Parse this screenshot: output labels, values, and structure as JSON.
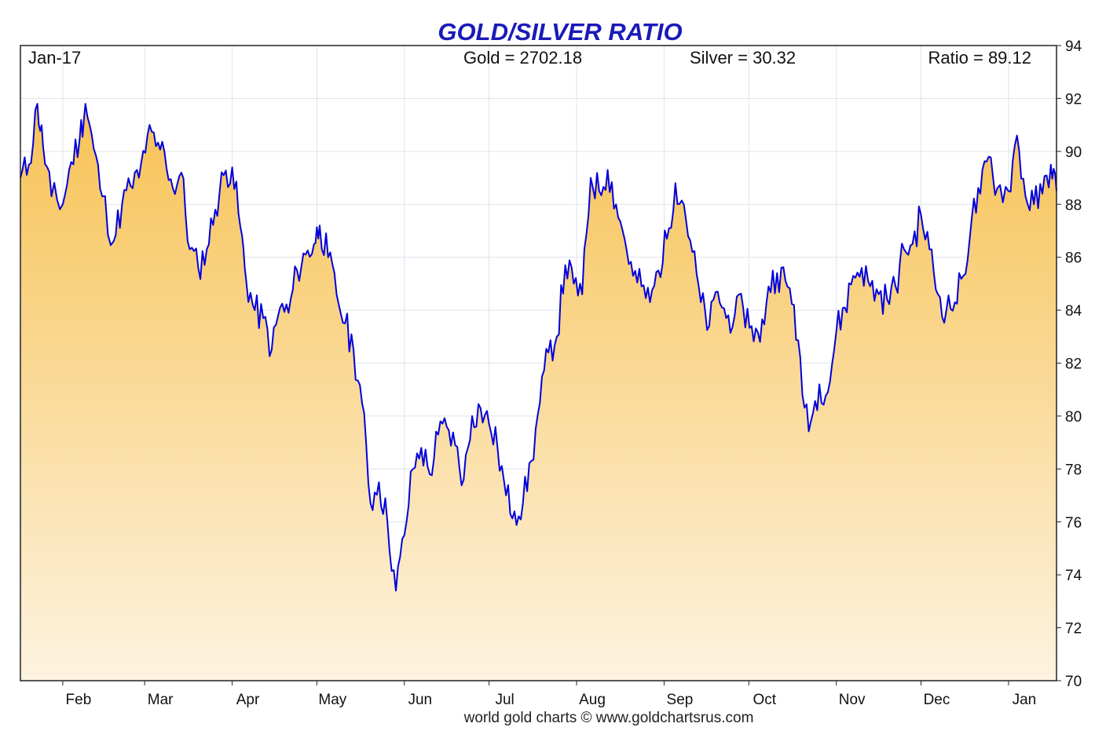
{
  "header": {
    "date": "Jan-17",
    "gold": "Gold = 2702.18",
    "silver": "Silver = 30.32",
    "ratio": "Ratio = 89.12"
  },
  "credit": "world gold charts © www.goldchartsrus.com",
  "colors": {
    "line": "#0000dd",
    "fill_top": "#f7c254",
    "fill_bottom": "#fdf3e0",
    "title": "#1a1ab8",
    "grid": "#dde3ec"
  },
  "chart_data": {
    "type": "area",
    "title": "GOLD/SILVER RATIO",
    "xlabel": "",
    "ylabel": "",
    "ylim": [
      70,
      94
    ],
    "y_ticks": [
      70,
      72,
      74,
      76,
      78,
      80,
      82,
      84,
      86,
      88,
      90,
      92,
      94
    ],
    "y_axis_side": "right",
    "x_tick_labels": [
      "Feb",
      "Mar",
      "Apr",
      "May",
      "Jun",
      "Jul",
      "Aug",
      "Sep",
      "Oct",
      "Nov",
      "Dec",
      "Jan"
    ],
    "grid": true,
    "series": [
      {
        "name": "Ratio",
        "x": [
          "2024-01-17",
          "2024-01-20",
          "2024-01-23",
          "2024-01-25",
          "2024-01-28",
          "2024-02-01",
          "2024-02-04",
          "2024-02-07",
          "2024-02-09",
          "2024-02-12",
          "2024-02-15",
          "2024-02-19",
          "2024-02-22",
          "2024-02-25",
          "2024-02-28",
          "2024-03-02",
          "2024-03-05",
          "2024-03-08",
          "2024-03-11",
          "2024-03-14",
          "2024-03-17",
          "2024-03-20",
          "2024-03-23",
          "2024-03-26",
          "2024-03-29",
          "2024-04-01",
          "2024-04-04",
          "2024-04-06",
          "2024-04-09",
          "2024-04-12",
          "2024-04-15",
          "2024-04-18",
          "2024-04-21",
          "2024-04-24",
          "2024-04-27",
          "2024-04-30",
          "2024-05-02",
          "2024-05-05",
          "2024-05-08",
          "2024-05-11",
          "2024-05-14",
          "2024-05-17",
          "2024-05-20",
          "2024-05-23",
          "2024-05-26",
          "2024-05-29",
          "2024-06-01",
          "2024-06-04",
          "2024-06-07",
          "2024-06-10",
          "2024-06-13",
          "2024-06-16",
          "2024-06-19",
          "2024-06-22",
          "2024-06-25",
          "2024-06-28",
          "2024-07-01",
          "2024-07-04",
          "2024-07-07",
          "2024-07-10",
          "2024-07-13",
          "2024-07-16",
          "2024-07-19",
          "2024-07-22",
          "2024-07-25",
          "2024-07-28",
          "2024-07-31",
          "2024-08-03",
          "2024-08-06",
          "2024-08-09",
          "2024-08-12",
          "2024-08-15",
          "2024-08-18",
          "2024-08-21",
          "2024-08-24",
          "2024-08-27",
          "2024-08-30",
          "2024-09-02",
          "2024-09-05",
          "2024-09-08",
          "2024-09-11",
          "2024-09-14",
          "2024-09-17",
          "2024-09-20",
          "2024-09-23",
          "2024-09-26",
          "2024-09-29",
          "2024-10-02",
          "2024-10-05",
          "2024-10-08",
          "2024-10-11",
          "2024-10-14",
          "2024-10-17",
          "2024-10-20",
          "2024-10-23",
          "2024-10-26",
          "2024-10-29",
          "2024-11-01",
          "2024-11-04",
          "2024-11-07",
          "2024-11-10",
          "2024-11-13",
          "2024-11-16",
          "2024-11-19",
          "2024-11-22",
          "2024-11-25",
          "2024-11-28",
          "2024-12-01",
          "2024-12-04",
          "2024-12-07",
          "2024-12-10",
          "2024-12-13",
          "2024-12-16",
          "2024-12-19",
          "2024-12-22",
          "2024-12-25",
          "2024-12-28",
          "2025-01-01",
          "2025-01-04",
          "2025-01-07",
          "2025-01-10",
          "2025-01-13",
          "2025-01-16",
          "2025-01-18"
        ],
        "values": [
          89.0,
          89.5,
          91.8,
          90.2,
          88.3,
          88.0,
          89.6,
          90.5,
          91.8,
          90.1,
          88.3,
          86.6,
          88.0,
          88.7,
          89.0,
          90.6,
          90.2,
          90.0,
          88.6,
          89.2,
          86.3,
          85.6,
          86.3,
          87.8,
          89.1,
          89.4,
          87.1,
          85.1,
          84.0,
          83.7,
          82.5,
          84.1,
          83.9,
          85.5,
          86.1,
          86.5,
          87.2,
          86.0,
          84.6,
          83.5,
          82.5,
          80.5,
          76.7,
          77.5,
          76.0,
          73.4,
          75.5,
          78.0,
          78.8,
          77.8,
          79.3,
          79.6,
          78.9,
          77.6,
          80.0,
          80.3,
          79.7,
          78.8,
          77.0,
          76.4,
          76.7,
          78.3,
          80.5,
          82.4,
          83.0,
          85.7,
          85.0,
          84.6,
          89.0,
          88.5,
          89.3,
          88.0,
          86.7,
          85.3,
          84.9,
          84.3,
          85.5,
          86.7,
          88.8,
          88.0,
          86.2,
          84.3,
          83.4,
          84.7,
          83.7,
          83.8,
          84.1,
          83.4,
          82.8,
          84.9,
          85.4,
          85.1,
          84.2,
          80.8,
          79.8,
          81.2,
          80.9,
          83.2,
          84.1,
          85.3,
          85.6,
          84.9,
          84.6,
          84.4,
          84.9,
          86.3,
          86.5,
          87.6,
          86.3,
          84.6,
          84.0,
          84.3,
          85.3,
          87.5,
          88.4,
          89.8,
          88.6,
          88.5,
          90.6,
          88.3,
          88.0,
          88.4,
          89.5,
          88.5
        ]
      }
    ]
  }
}
